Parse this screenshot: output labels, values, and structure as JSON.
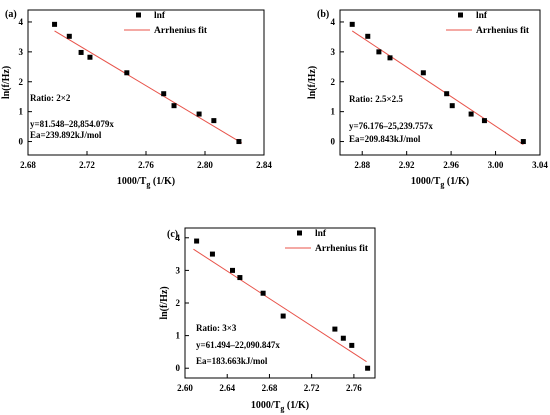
{
  "colors": {
    "fit_line": "#e8534a",
    "marker": "#000000",
    "axis": "#000000"
  },
  "chart_data": [
    {
      "type": "scatter",
      "panel_label": "(a)",
      "xlabel": "1000/T",
      "xlabel_sub": "g",
      "xlabel_unit": " (1/K)",
      "ylabel": "ln(f/Hz)",
      "xlim": [
        2.68,
        2.84
      ],
      "ylim": [
        -0.45,
        4.4
      ],
      "xticks": [
        2.68,
        2.72,
        2.76,
        2.8,
        2.84
      ],
      "xtick_labels": [
        "2.68",
        "2.72",
        "2.76",
        "2.80",
        "2.84"
      ],
      "yticks": [
        0,
        1,
        2,
        3,
        4
      ],
      "ytick_labels": [
        "0",
        "1",
        "2",
        "3",
        "4"
      ],
      "legend": {
        "placement": "top-right",
        "marker_label": "lnf",
        "line_label": "Arrhenius fit"
      },
      "series": [
        {
          "name": "lnf",
          "kind": "points",
          "x": [
            2.698,
            2.708,
            2.716,
            2.722,
            2.747,
            2.772,
            2.779,
            2.796,
            2.806,
            2.823
          ],
          "y": [
            3.92,
            3.52,
            2.98,
            2.82,
            2.3,
            1.6,
            1.2,
            0.92,
            0.7,
            0.0
          ]
        },
        {
          "name": "Arrhenius fit",
          "kind": "line",
          "x": [
            2.698,
            2.825
          ],
          "y": [
            3.7,
            -0.05
          ]
        }
      ],
      "annotations": {
        "ratio": "Ratio:  2×2",
        "equation": "y=81.548–28,854.079x",
        "ea": "Ea=239.892kJ/mol"
      }
    },
    {
      "type": "scatter",
      "panel_label": "(b)",
      "xlabel": "1000/T",
      "xlabel_sub": "g",
      "xlabel_unit": " (1/K)",
      "ylabel": "ln(f/Hz)",
      "xlim": [
        2.86,
        3.04
      ],
      "ylim": [
        -0.45,
        4.4
      ],
      "xticks": [
        2.88,
        2.92,
        2.96,
        3.0,
        3.04
      ],
      "xtick_labels": [
        "2.88",
        "2.92",
        "2.96",
        "3.00",
        "3.04"
      ],
      "yticks": [
        0,
        1,
        2,
        3,
        4
      ],
      "ytick_labels": [
        "0",
        "1",
        "2",
        "3",
        "4"
      ],
      "legend": {
        "placement": "top-right",
        "marker_label": "lnf",
        "line_label": "Arrhenius fit"
      },
      "series": [
        {
          "name": "lnf",
          "kind": "points",
          "x": [
            2.871,
            2.885,
            2.895,
            2.905,
            2.935,
            2.956,
            2.961,
            2.978,
            2.99,
            3.025
          ],
          "y": [
            3.92,
            3.52,
            3.0,
            2.8,
            2.3,
            1.6,
            1.2,
            0.92,
            0.7,
            0.0
          ]
        },
        {
          "name": "Arrhenius fit",
          "kind": "line",
          "x": [
            2.871,
            3.025
          ],
          "y": [
            3.7,
            -0.1
          ]
        }
      ],
      "annotations": {
        "ratio": "Ratio:  2.5×2.5",
        "equation": "y=76.176–25,239.757x",
        "ea": "Ea=209.843kJ/mol"
      }
    },
    {
      "type": "scatter",
      "panel_label": "(c)",
      "xlabel": "1000/T",
      "xlabel_sub": "g",
      "xlabel_unit": " (1/K)",
      "ylabel": "ln(f/Hz)",
      "xlim": [
        2.6,
        2.78
      ],
      "ylim": [
        -0.3,
        4.3
      ],
      "xticks": [
        2.6,
        2.64,
        2.68,
        2.72,
        2.76
      ],
      "xtick_labels": [
        "2.60",
        "2.64",
        "2.68",
        "2.72",
        "2.76"
      ],
      "yticks": [
        0,
        1,
        2,
        3,
        4
      ],
      "ytick_labels": [
        "0",
        "1",
        "2",
        "3",
        "4"
      ],
      "legend": {
        "placement": "top-right",
        "marker_label": "lnf",
        "line_label": "Arrhenius fit"
      },
      "series": [
        {
          "name": "lnf",
          "kind": "points",
          "x": [
            2.611,
            2.626,
            2.645,
            2.652,
            2.674,
            2.693,
            2.742,
            2.75,
            2.758,
            2.773
          ],
          "y": [
            3.9,
            3.5,
            3.0,
            2.78,
            2.3,
            1.6,
            1.2,
            0.92,
            0.7,
            0.0
          ]
        },
        {
          "name": "Arrhenius fit",
          "kind": "line",
          "x": [
            2.608,
            2.772
          ],
          "y": [
            3.65,
            0.2
          ]
        }
      ],
      "annotations": {
        "ratio": "Ratio:  3×3",
        "equation": "y=61.494–22,090.847x",
        "ea": "Ea=183.663kJ/mol"
      }
    }
  ]
}
